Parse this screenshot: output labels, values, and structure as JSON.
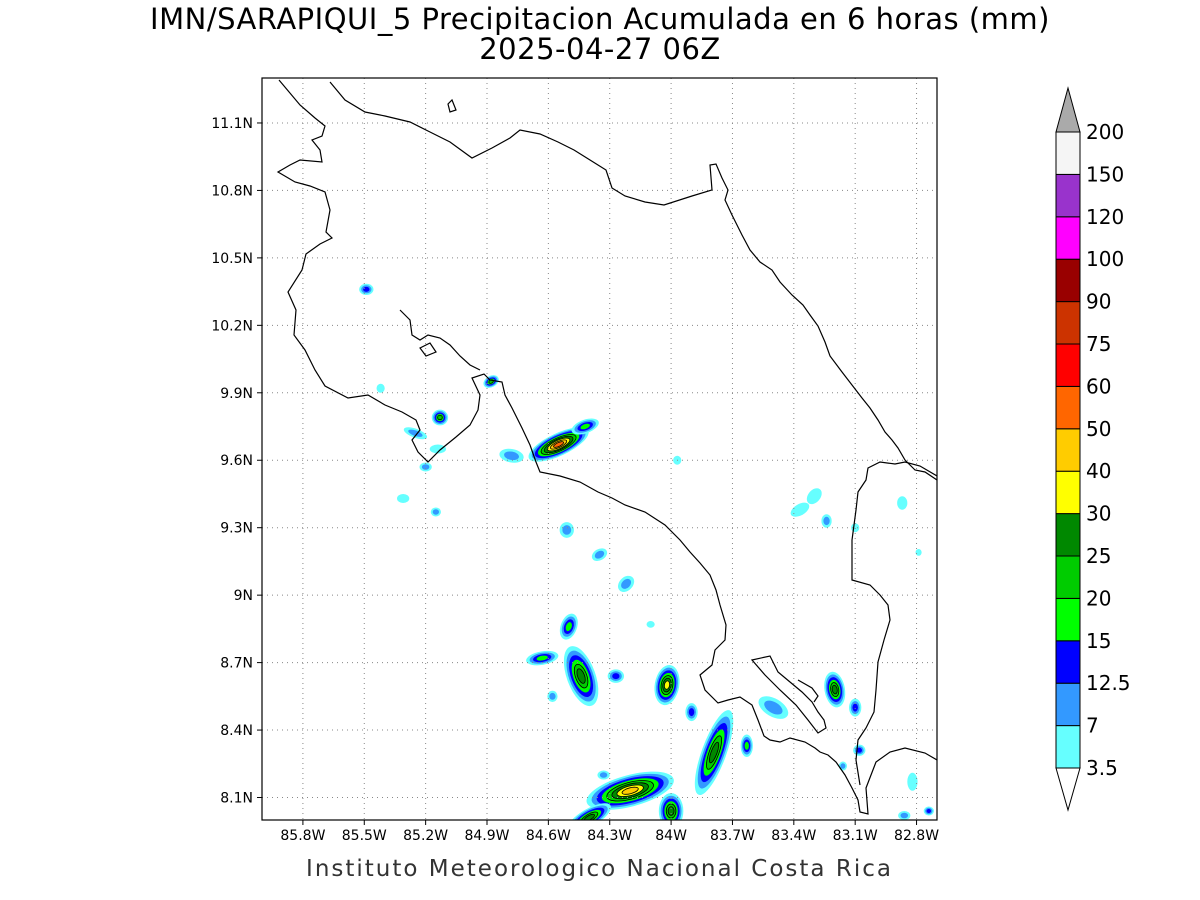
{
  "title": {
    "line1": "IMN/SARAPIQUI_5 Precipitacion Acumulada en 6 horas (mm)",
    "line2": "2025-04-27 06Z"
  },
  "footer": "Instituto Meteorologico Nacional Costa Rica",
  "map": {
    "lon_range": [
      -86.0,
      -82.7
    ],
    "lat_range": [
      8.0,
      11.3
    ],
    "lon_ticks": [
      {
        "value": -85.8,
        "label": "85.8W"
      },
      {
        "value": -85.5,
        "label": "85.5W"
      },
      {
        "value": -85.2,
        "label": "85.2W"
      },
      {
        "value": -84.9,
        "label": "84.9W"
      },
      {
        "value": -84.6,
        "label": "84.6W"
      },
      {
        "value": -84.3,
        "label": "84.3W"
      },
      {
        "value": -84.0,
        "label": "84W"
      },
      {
        "value": -83.7,
        "label": "83.7W"
      },
      {
        "value": -83.4,
        "label": "83.4W"
      },
      {
        "value": -83.1,
        "label": "83.1W"
      },
      {
        "value": -82.8,
        "label": "82.8W"
      }
    ],
    "lat_ticks": [
      {
        "value": 11.1,
        "label": "11.1N"
      },
      {
        "value": 10.8,
        "label": "10.8N"
      },
      {
        "value": 10.5,
        "label": "10.5N"
      },
      {
        "value": 10.2,
        "label": "10.2N"
      },
      {
        "value": 9.9,
        "label": "9.9N"
      },
      {
        "value": 9.6,
        "label": "9.6N"
      },
      {
        "value": 9.3,
        "label": "9.3N"
      },
      {
        "value": 9.0,
        "label": "9N"
      },
      {
        "value": 8.7,
        "label": "8.7N"
      },
      {
        "value": 8.4,
        "label": "8.4N"
      },
      {
        "value": 8.1,
        "label": "8.1N"
      }
    ],
    "gridlines": true,
    "coastline_color": "#000000",
    "precip_cells": [
      {
        "lon": -84.55,
        "lat": 9.67,
        "rx": 0.16,
        "ry": 0.05,
        "rot": -25,
        "peak": 50
      },
      {
        "lon": -84.42,
        "lat": 9.75,
        "rx": 0.07,
        "ry": 0.03,
        "rot": -20,
        "peak": 15
      },
      {
        "lon": -84.78,
        "lat": 9.62,
        "rx": 0.06,
        "ry": 0.03,
        "rot": 10,
        "peak": 7
      },
      {
        "lon": -84.88,
        "lat": 9.95,
        "rx": 0.04,
        "ry": 0.025,
        "rot": -30,
        "peak": 20
      },
      {
        "lon": -85.13,
        "lat": 9.79,
        "rx": 0.04,
        "ry": 0.035,
        "rot": 0,
        "peak": 20
      },
      {
        "lon": -85.25,
        "lat": 9.72,
        "rx": 0.06,
        "ry": 0.02,
        "rot": 20,
        "peak": 7
      },
      {
        "lon": -85.14,
        "lat": 9.65,
        "rx": 0.04,
        "ry": 0.02,
        "rot": 0,
        "peak": 3.5
      },
      {
        "lon": -85.2,
        "lat": 9.57,
        "rx": 0.03,
        "ry": 0.02,
        "rot": 0,
        "peak": 7
      },
      {
        "lon": -85.15,
        "lat": 9.37,
        "rx": 0.025,
        "ry": 0.02,
        "rot": 0,
        "peak": 7
      },
      {
        "lon": -85.31,
        "lat": 9.43,
        "rx": 0.03,
        "ry": 0.02,
        "rot": 0,
        "peak": 3.5
      },
      {
        "lon": -85.49,
        "lat": 10.36,
        "rx": 0.035,
        "ry": 0.025,
        "rot": 0,
        "peak": 12.5
      },
      {
        "lon": -85.42,
        "lat": 9.92,
        "rx": 0.02,
        "ry": 0.02,
        "rot": 0,
        "peak": 3.5
      },
      {
        "lon": -84.51,
        "lat": 9.29,
        "rx": 0.035,
        "ry": 0.035,
        "rot": 0,
        "peak": 7
      },
      {
        "lon": -84.35,
        "lat": 9.18,
        "rx": 0.04,
        "ry": 0.025,
        "rot": -30,
        "peak": 7
      },
      {
        "lon": -84.22,
        "lat": 9.05,
        "rx": 0.045,
        "ry": 0.03,
        "rot": -45,
        "peak": 7
      },
      {
        "lon": -84.5,
        "lat": 8.86,
        "rx": 0.04,
        "ry": 0.06,
        "rot": 20,
        "peak": 15
      },
      {
        "lon": -84.63,
        "lat": 8.72,
        "rx": 0.08,
        "ry": 0.03,
        "rot": -10,
        "peak": 15
      },
      {
        "lon": -84.44,
        "lat": 8.64,
        "rx": 0.07,
        "ry": 0.14,
        "rot": -20,
        "peak": 25
      },
      {
        "lon": -84.27,
        "lat": 8.64,
        "rx": 0.04,
        "ry": 0.03,
        "rot": 0,
        "peak": 12.5
      },
      {
        "lon": -84.58,
        "lat": 8.55,
        "rx": 0.025,
        "ry": 0.025,
        "rot": 0,
        "peak": 7
      },
      {
        "lon": -84.02,
        "lat": 8.6,
        "rx": 0.06,
        "ry": 0.09,
        "rot": 10,
        "peak": 30
      },
      {
        "lon": -83.9,
        "lat": 8.48,
        "rx": 0.03,
        "ry": 0.04,
        "rot": 0,
        "peak": 12.5
      },
      {
        "lon": -83.79,
        "lat": 8.3,
        "rx": 0.06,
        "ry": 0.2,
        "rot": 20,
        "peak": 25
      },
      {
        "lon": -83.63,
        "lat": 8.33,
        "rx": 0.03,
        "ry": 0.05,
        "rot": 0,
        "peak": 15
      },
      {
        "lon": -84.2,
        "lat": 8.13,
        "rx": 0.22,
        "ry": 0.07,
        "rot": -15,
        "peak": 40
      },
      {
        "lon": -84.0,
        "lat": 8.04,
        "rx": 0.06,
        "ry": 0.08,
        "rot": 0,
        "peak": 25
      },
      {
        "lon": -84.4,
        "lat": 8.01,
        "rx": 0.12,
        "ry": 0.04,
        "rot": -30,
        "peak": 25
      },
      {
        "lon": -84.33,
        "lat": 8.2,
        "rx": 0.03,
        "ry": 0.02,
        "rot": 0,
        "peak": 7
      },
      {
        "lon": -83.5,
        "lat": 8.5,
        "rx": 0.08,
        "ry": 0.04,
        "rot": 30,
        "peak": 7
      },
      {
        "lon": -83.2,
        "lat": 8.58,
        "rx": 0.05,
        "ry": 0.08,
        "rot": -10,
        "peak": 25
      },
      {
        "lon": -83.1,
        "lat": 8.5,
        "rx": 0.03,
        "ry": 0.04,
        "rot": 0,
        "peak": 12.5
      },
      {
        "lon": -83.08,
        "lat": 8.31,
        "rx": 0.03,
        "ry": 0.025,
        "rot": 0,
        "peak": 12.5
      },
      {
        "lon": -83.16,
        "lat": 8.24,
        "rx": 0.02,
        "ry": 0.02,
        "rot": 0,
        "peak": 7
      },
      {
        "lon": -82.82,
        "lat": 8.17,
        "rx": 0.025,
        "ry": 0.04,
        "rot": 0,
        "peak": 3.5
      },
      {
        "lon": -82.74,
        "lat": 8.04,
        "rx": 0.025,
        "ry": 0.02,
        "rot": 0,
        "peak": 12.5
      },
      {
        "lon": -82.86,
        "lat": 8.02,
        "rx": 0.03,
        "ry": 0.02,
        "rot": 0,
        "peak": 7
      },
      {
        "lon": -83.3,
        "lat": 9.44,
        "rx": 0.03,
        "ry": 0.04,
        "rot": 40,
        "peak": 3.5
      },
      {
        "lon": -83.37,
        "lat": 9.38,
        "rx": 0.05,
        "ry": 0.025,
        "rot": -30,
        "peak": 3.5
      },
      {
        "lon": -83.24,
        "lat": 9.33,
        "rx": 0.025,
        "ry": 0.03,
        "rot": 0,
        "peak": 7
      },
      {
        "lon": -83.1,
        "lat": 9.3,
        "rx": 0.02,
        "ry": 0.02,
        "rot": 0,
        "peak": 3.5
      },
      {
        "lon": -82.87,
        "lat": 9.41,
        "rx": 0.025,
        "ry": 0.03,
        "rot": 0,
        "peak": 3.5
      },
      {
        "lon": -83.97,
        "lat": 9.6,
        "rx": 0.02,
        "ry": 0.02,
        "rot": 0,
        "peak": 3.5
      },
      {
        "lon": -84.1,
        "lat": 8.87,
        "rx": 0.02,
        "ry": 0.015,
        "rot": 0,
        "peak": 3.5
      },
      {
        "lon": -82.79,
        "lat": 9.19,
        "rx": 0.015,
        "ry": 0.015,
        "rot": 0,
        "peak": 3.5
      }
    ]
  },
  "colorbar": {
    "levels": [
      "3.5",
      "7",
      "12.5",
      "15",
      "20",
      "25",
      "30",
      "40",
      "50",
      "60",
      "75",
      "90",
      "100",
      "120",
      "150",
      "200"
    ],
    "colors": [
      "#66ffff",
      "#3399ff",
      "#0000ff",
      "#00ff00",
      "#00cc00",
      "#008800",
      "#ffff00",
      "#ffcc00",
      "#ff6600",
      "#ff0000",
      "#cc3300",
      "#990000",
      "#ff00ff",
      "#9933cc",
      "#f5f5f5"
    ],
    "under_color": "#ffffff",
    "over_color": "#aaaaaa"
  }
}
